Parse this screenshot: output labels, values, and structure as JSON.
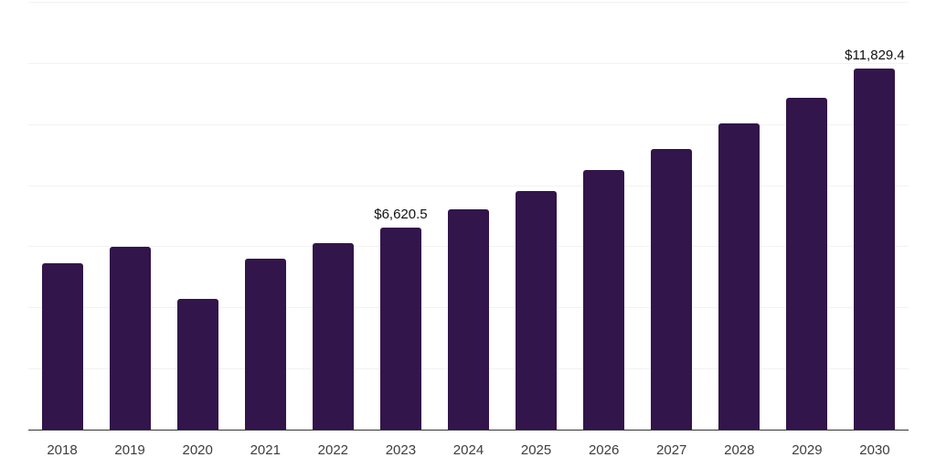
{
  "chart_data": {
    "type": "bar",
    "title": "",
    "xlabel": "",
    "ylabel": "",
    "categories": [
      "2018",
      "2019",
      "2020",
      "2021",
      "2022",
      "2023",
      "2024",
      "2025",
      "2026",
      "2027",
      "2028",
      "2029",
      "2030"
    ],
    "values": [
      5450,
      5970,
      4270,
      5600,
      6100,
      6620.5,
      7200,
      7800,
      8500,
      9190,
      10010,
      10870,
      11829.4
    ],
    "data_labels": [
      "",
      "",
      "",
      "",
      "",
      "$6,620.5",
      "",
      "",
      "",
      "",
      "",
      "",
      "$11,829.4"
    ],
    "ylim": [
      0,
      14000
    ],
    "gridline_step": 2000,
    "grid": "horizontal",
    "legend": "none",
    "colors": {
      "bar": "#32154a",
      "gridline": "#f2f2f4",
      "axis": "#333333",
      "tick_label": "#3d3d3d",
      "data_label": "#111111",
      "background": "#ffffff"
    }
  }
}
